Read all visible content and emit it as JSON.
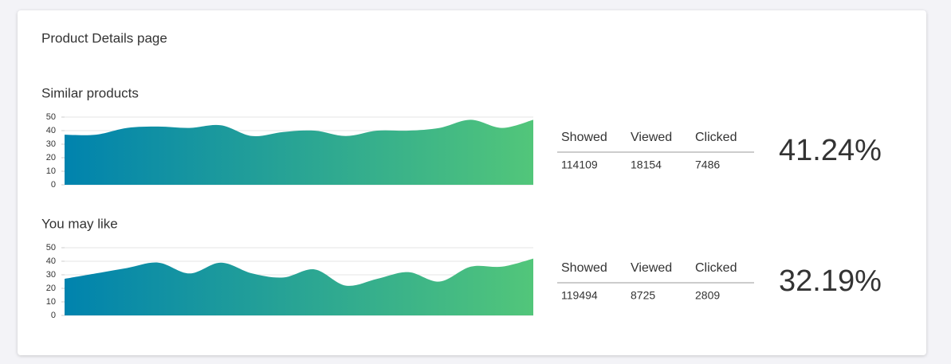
{
  "header": {
    "title": "Product Details page"
  },
  "chart_data": [
    {
      "type": "area",
      "title": "Similar products",
      "values": [
        37,
        37,
        42,
        43,
        42,
        44,
        36,
        39,
        40,
        36,
        40,
        40,
        42,
        48,
        42,
        48
      ],
      "ylim": [
        0,
        50
      ],
      "yticks": [
        0,
        10,
        20,
        30,
        40,
        50
      ],
      "grid": true,
      "gradient": [
        "#0083ae",
        "#52c67a"
      ]
    },
    {
      "type": "area",
      "title": "You may like",
      "values": [
        27,
        31,
        35,
        39,
        31,
        39,
        31,
        28,
        34,
        22,
        27,
        32,
        25,
        36,
        36,
        42
      ],
      "ylim": [
        0,
        50
      ],
      "yticks": [
        0,
        10,
        20,
        30,
        40,
        50
      ],
      "grid": true,
      "gradient": [
        "#0083ae",
        "#52c67a"
      ]
    }
  ],
  "stats": [
    {
      "columns": [
        "Showed",
        "Viewed",
        "Clicked"
      ],
      "values": [
        114109,
        18154,
        7486
      ],
      "rate": "41.24%"
    },
    {
      "columns": [
        "Showed",
        "Viewed",
        "Clicked"
      ],
      "values": [
        119494,
        8725,
        2809
      ],
      "rate": "32.19%"
    }
  ]
}
